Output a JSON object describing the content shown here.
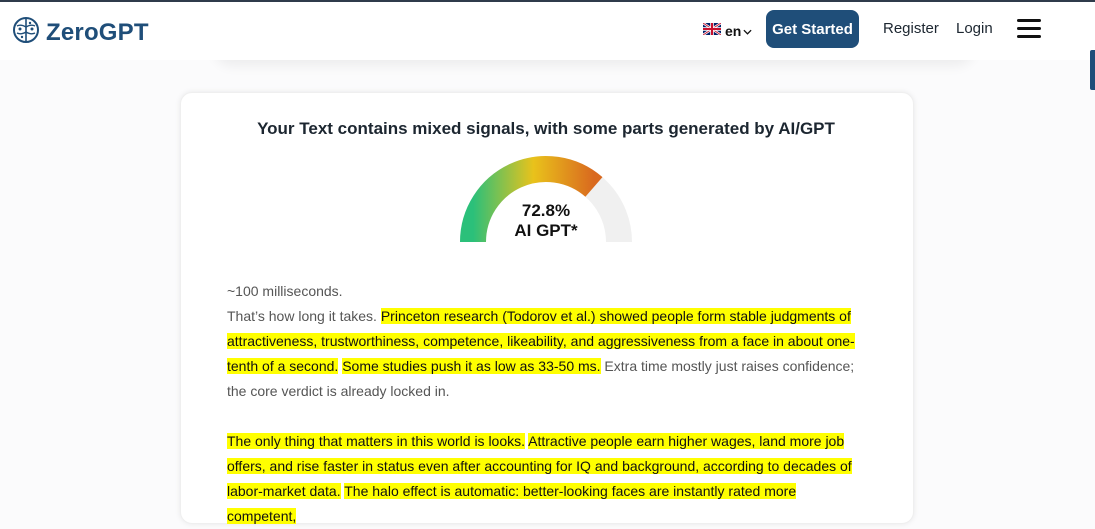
{
  "brand": {
    "name": "ZeroGPT"
  },
  "nav": {
    "lang_code": "en",
    "cta_label": "Get Started",
    "register_label": "Register",
    "login_label": "Login"
  },
  "result": {
    "title": "Your Text contains mixed signals, with some parts generated by AI/GPT",
    "percentage": "72.8%",
    "label": "AI GPT*",
    "ai_fraction": 0.728
  },
  "paragraphs": [
    [
      {
        "text": "~100 milliseconds.",
        "hl": false,
        "br": true
      },
      {
        "text": "That’s how long it takes. ",
        "hl": false
      },
      {
        "text": "Princeton research (Todorov et al.) showed people form stable judgments of attractiveness, trustworthiness, competence, likeability, and aggressiveness from a face in about one-tenth of a second.",
        "hl": true
      },
      {
        "text": " ",
        "hl": false
      },
      {
        "text": "Some studies push it as low as 33-50 ms.",
        "hl": true
      },
      {
        "text": " Extra time mostly just raises confidence; the core verdict is already locked in.",
        "hl": false
      }
    ],
    [
      {
        "text": "The only thing that matters in this world is looks.",
        "hl": true
      },
      {
        "text": " ",
        "hl": false
      },
      {
        "text": "Attractive people earn higher wages, land more job offers, and rise faster in status even after accounting for IQ and background, according to decades of labor-market data.",
        "hl": true
      },
      {
        "text": " ",
        "hl": false
      },
      {
        "text": "The halo effect is automatic: better-looking faces are instantly rated more competent,",
        "hl": true
      }
    ]
  ],
  "colors": {
    "brand": "#1f4e79",
    "highlight": "#ffff00",
    "gauge_green": "#2bc07a",
    "gauge_yellow": "#e9c21b",
    "gauge_orange": "#d9691f",
    "gauge_track": "#f0f0f0"
  },
  "icons": [
    "brain-logo-icon",
    "uk-flag-icon",
    "chevron-down-icon",
    "hamburger-menu-icon"
  ]
}
